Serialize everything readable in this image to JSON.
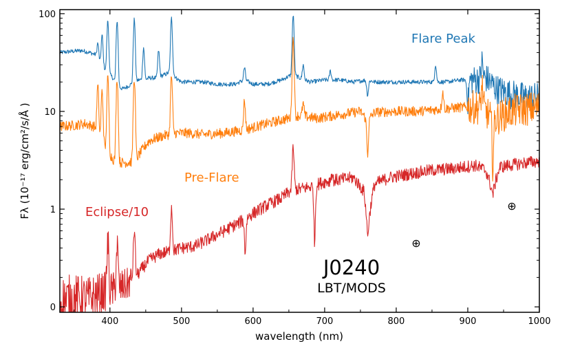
{
  "chart_data": {
    "type": "line",
    "title": "",
    "xlabel": "wavelength (nm)",
    "ylabel": "Fλ (10⁻¹⁷ erg/cm²/s/Å )",
    "yscale": "log",
    "xlim": [
      330,
      1000
    ],
    "ylim": [
      0.088,
      110
    ],
    "x_ticks": [
      400,
      500,
      600,
      700,
      800,
      900,
      1000
    ],
    "x_tick_labels": [
      "400",
      "500",
      "600",
      "700",
      "800",
      "900",
      "1000"
    ],
    "y_ticks": [
      0.1,
      1,
      10,
      100
    ],
    "y_tick_labels": [
      "0",
      "1",
      "10",
      "100"
    ],
    "grid": false,
    "annotations": {
      "target": "J0240",
      "instrument": "LBT/MODS",
      "telluric_symbol": "⊕",
      "telluric_positions_nm": [
        760,
        935
      ]
    },
    "series": [
      {
        "name": "Flare Peak",
        "color": "#1f77b4",
        "x": [
          330,
          345,
          360,
          372,
          380,
          388,
          397,
          404,
          411,
          418,
          425,
          434,
          440,
          448,
          455,
          465,
          478,
          486,
          492,
          500,
          515,
          530,
          550,
          575,
          588,
          600,
          620,
          640,
          656,
          665,
          680,
          700,
          720,
          740,
          760,
          770,
          790,
          810,
          830,
          850,
          870,
          890,
          910,
          925,
          940,
          960,
          980,
          1000
        ],
        "values": [
          40,
          41,
          42,
          40,
          38,
          30,
          25,
          22,
          18,
          17,
          18,
          20,
          21,
          21,
          22,
          22,
          24,
          26,
          22,
          20,
          20,
          20,
          19,
          19,
          21,
          19,
          19,
          21,
          24,
          22,
          20,
          21,
          21,
          20,
          21,
          20,
          20,
          20,
          20,
          20,
          20,
          21,
          21,
          22,
          17,
          15,
          14,
          14
        ],
        "lines": [
          {
            "x": 383,
            "peak": 50
          },
          {
            "x": 389,
            "peak": 60
          },
          {
            "x": 397,
            "peak": 85
          },
          {
            "x": 410,
            "peak": 85
          },
          {
            "x": 434,
            "peak": 88
          },
          {
            "x": 447,
            "peak": 45
          },
          {
            "x": 468,
            "peak": 42
          },
          {
            "x": 486,
            "peak": 90
          },
          {
            "x": 588,
            "peak": 28
          },
          {
            "x": 656,
            "peak": 95
          },
          {
            "x": 670,
            "peak": 30
          },
          {
            "x": 708,
            "peak": 26
          },
          {
            "x": 855,
            "peak": 30
          },
          {
            "x": 920,
            "peak": 32
          }
        ],
        "dips": [
          {
            "x": 760,
            "depth": 0.7
          },
          {
            "x": 900,
            "depth": 0.55
          }
        ],
        "noise": 0.05,
        "noise_red": 0.35
      },
      {
        "name": "Pre-Flare",
        "color": "#ff7f0e",
        "x": [
          330,
          350,
          365,
          378,
          385,
          395,
          405,
          415,
          425,
          435,
          445,
          455,
          470,
          490,
          510,
          530,
          560,
          590,
          620,
          650,
          656,
          665,
          690,
          710,
          730,
          750,
          760,
          770,
          800,
          830,
          860,
          890,
          920,
          935,
          960,
          1000
        ],
        "values": [
          7,
          7.2,
          7.5,
          7.0,
          5.5,
          4.0,
          3.2,
          3.0,
          3.0,
          3.1,
          4.0,
          5.0,
          5.5,
          6.0,
          6.0,
          5.8,
          6.0,
          6.5,
          7.5,
          8.5,
          9,
          9,
          8.5,
          9,
          9.5,
          10,
          8,
          9.8,
          10,
          10,
          10.5,
          11,
          11,
          8,
          10,
          11
        ],
        "lines": [
          {
            "x": 383,
            "peak": 18
          },
          {
            "x": 389,
            "peak": 16
          },
          {
            "x": 397,
            "peak": 22
          },
          {
            "x": 410,
            "peak": 22
          },
          {
            "x": 434,
            "peak": 22
          },
          {
            "x": 486,
            "peak": 23
          },
          {
            "x": 588,
            "peak": 13
          },
          {
            "x": 656,
            "peak": 55
          },
          {
            "x": 670,
            "peak": 12
          },
          {
            "x": 865,
            "peak": 16
          },
          {
            "x": 920,
            "peak": 18
          }
        ],
        "dips": [
          {
            "x": 760,
            "depth": 0.45
          },
          {
            "x": 935,
            "depth": 0.35
          }
        ],
        "noise": 0.12,
        "noise_red": 0.4
      },
      {
        "name": "Eclipse/10",
        "color": "#d62728",
        "x": [
          330,
          350,
          370,
          390,
          410,
          425,
          440,
          455,
          470,
          485,
          500,
          520,
          540,
          560,
          580,
          600,
          620,
          640,
          656,
          665,
          680,
          700,
          720,
          740,
          755,
          760,
          770,
          790,
          820,
          850,
          880,
          910,
          925,
          935,
          945,
          970,
          1000
        ],
        "values": [
          0.11,
          0.12,
          0.12,
          0.14,
          0.15,
          0.17,
          0.22,
          0.3,
          0.35,
          0.37,
          0.4,
          0.42,
          0.5,
          0.6,
          0.72,
          0.9,
          1.1,
          1.3,
          1.6,
          1.6,
          1.7,
          1.9,
          2.0,
          2.1,
          1.5,
          0.5,
          1.8,
          2.1,
          2.3,
          2.5,
          2.6,
          2.8,
          2.5,
          1.4,
          2.7,
          2.9,
          3.1
        ],
        "lines": [
          {
            "x": 397,
            "peak": 0.45
          },
          {
            "x": 410,
            "peak": 0.42
          },
          {
            "x": 434,
            "peak": 0.6
          },
          {
            "x": 486,
            "peak": 1.05
          },
          {
            "x": 656,
            "peak": 4.2
          },
          {
            "x": 710,
            "peak": 2.3
          }
        ],
        "dips": [
          {
            "x": 589,
            "depth": 0.45
          },
          {
            "x": 686,
            "depth": 0.25
          }
        ],
        "noise": 0.15,
        "noise_blue": 0.55
      }
    ],
    "series_labels": [
      "Flare Peak",
      "Pre-Flare",
      "Eclipse/10"
    ]
  }
}
